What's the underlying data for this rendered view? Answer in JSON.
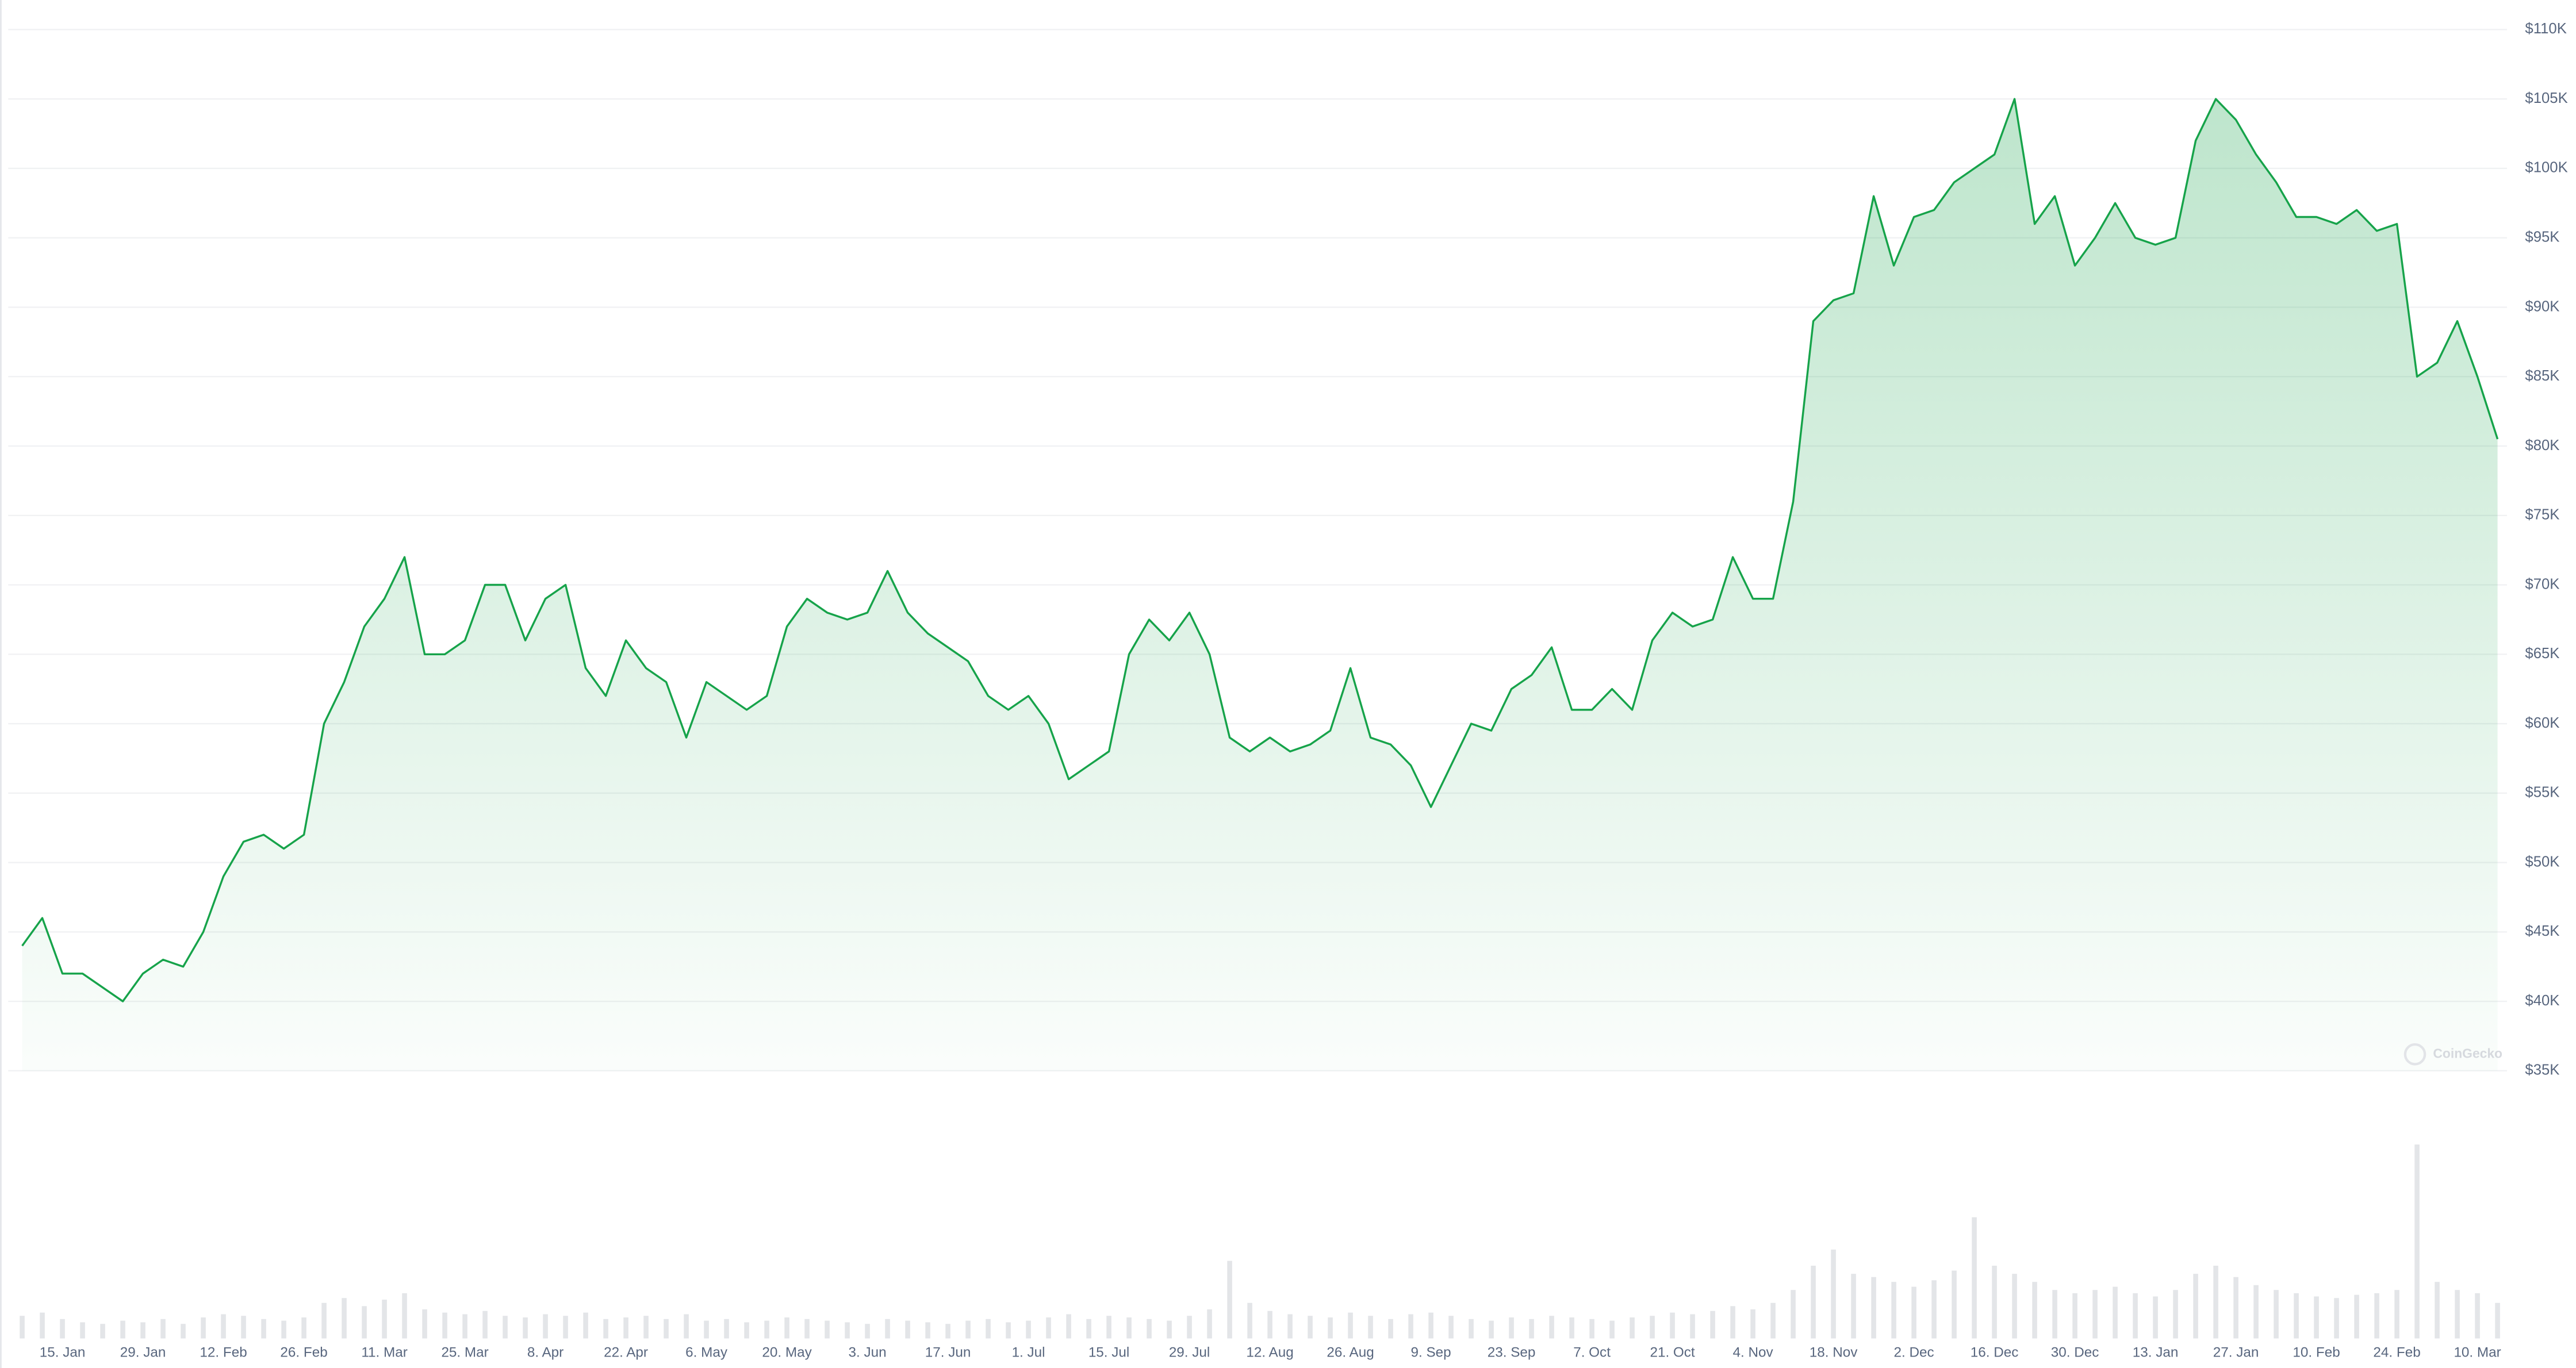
{
  "chart_data": {
    "type": "area",
    "color": "#16a34a",
    "grid": true,
    "annotation": "CoinGecko",
    "categories": [
      null,
      null,
      "15. Jan",
      null,
      null,
      null,
      "29. Jan",
      null,
      null,
      null,
      "12. Feb",
      null,
      null,
      null,
      "26. Feb",
      null,
      null,
      null,
      "11. Mar",
      null,
      null,
      null,
      "25. Mar",
      null,
      null,
      null,
      "8. Apr",
      null,
      null,
      null,
      "22. Apr",
      null,
      null,
      null,
      "6. May",
      null,
      null,
      null,
      "20. May",
      null,
      null,
      null,
      "3. Jun",
      null,
      null,
      null,
      "17. Jun",
      null,
      null,
      null,
      "1. Jul",
      null,
      null,
      null,
      "15. Jul",
      null,
      null,
      null,
      "29. Jul",
      null,
      null,
      null,
      "12. Aug",
      null,
      null,
      null,
      "26. Aug",
      null,
      null,
      null,
      "9. Sep",
      null,
      null,
      null,
      "23. Sep",
      null,
      null,
      null,
      "7. Oct",
      null,
      null,
      null,
      "21. Oct",
      null,
      null,
      null,
      "4. Nov",
      null,
      null,
      null,
      "18. Nov",
      null,
      null,
      null,
      "2. Dec",
      null,
      null,
      null,
      "16. Dec",
      null,
      null,
      null,
      "30. Dec",
      null,
      null,
      null,
      "13. Jan",
      null,
      null,
      null,
      "27. Jan",
      null,
      null,
      null,
      "10. Feb",
      null,
      null,
      null,
      "24. Feb",
      null,
      null,
      null,
      "10. Mar",
      null
    ],
    "series": [
      {
        "values": [
          44000,
          46000,
          42000,
          42000,
          41000,
          40000,
          42000,
          43000,
          42500,
          45000,
          49000,
          51500,
          52000,
          51000,
          52000,
          60000,
          63000,
          67000,
          69000,
          72000,
          65000,
          65000,
          66000,
          70000,
          70000,
          66000,
          69000,
          70000,
          64000,
          62000,
          66000,
          64000,
          63000,
          59000,
          63000,
          62000,
          61000,
          62000,
          67000,
          69000,
          68000,
          67500,
          68000,
          71000,
          68000,
          66500,
          65500,
          64500,
          62000,
          61000,
          62000,
          60000,
          56000,
          57000,
          58000,
          65000,
          67500,
          66000,
          68000,
          65000,
          59000,
          58000,
          59000,
          58000,
          58500,
          59500,
          64000,
          59000,
          58500,
          57000,
          54000,
          57000,
          60000,
          59500,
          62500,
          63500,
          65500,
          61000,
          61000,
          62500,
          61000,
          66000,
          68000,
          67000,
          67500,
          72000,
          69000,
          69000,
          76000,
          89000,
          90500,
          91000,
          98000,
          93000,
          96500,
          97000,
          99000,
          100000,
          101000,
          105000,
          96000,
          98000,
          93000,
          95000,
          97500,
          95000,
          94500,
          95000,
          102000,
          105000,
          103500,
          101000,
          99000,
          96500,
          96500,
          96000,
          97000,
          95500,
          96000,
          85000,
          86000,
          89000,
          85000,
          80500
        ]
      }
    ],
    "volume": [
      14,
      16,
      12,
      10,
      9,
      11,
      10,
      12,
      9,
      13,
      15,
      14,
      12,
      11,
      13,
      22,
      25,
      20,
      24,
      28,
      18,
      16,
      15,
      17,
      14,
      13,
      15,
      14,
      16,
      12,
      13,
      14,
      12,
      15,
      11,
      12,
      10,
      11,
      13,
      12,
      11,
      10,
      9,
      12,
      11,
      10,
      9,
      11,
      12,
      10,
      11,
      13,
      15,
      12,
      14,
      13,
      12,
      11,
      14,
      18,
      48,
      22,
      17,
      15,
      14,
      13,
      16,
      14,
      12,
      15,
      16,
      14,
      12,
      11,
      13,
      12,
      14,
      13,
      12,
      11,
      13,
      14,
      16,
      15,
      17,
      20,
      18,
      22,
      30,
      45,
      55,
      40,
      38,
      35,
      32,
      36,
      42,
      75,
      45,
      40,
      35,
      30,
      28,
      30,
      32,
      28,
      26,
      30,
      40,
      45,
      38,
      33,
      30,
      28,
      26,
      25,
      27,
      28,
      30,
      120,
      35,
      30,
      28,
      22
    ],
    "y2lim": [
      0,
      125
    ],
    "ylim": [
      35000,
      110000
    ],
    "yticks": [
      {
        "value": 35000,
        "label": "$35K"
      },
      {
        "value": 40000,
        "label": "$40K"
      },
      {
        "value": 45000,
        "label": "$45K"
      },
      {
        "value": 50000,
        "label": "$50K"
      },
      {
        "value": 55000,
        "label": "$55K"
      },
      {
        "value": 60000,
        "label": "$60K"
      },
      {
        "value": 65000,
        "label": "$65K"
      },
      {
        "value": 70000,
        "label": "$70K"
      },
      {
        "value": 75000,
        "label": "$75K"
      },
      {
        "value": 80000,
        "label": "$80K"
      },
      {
        "value": 85000,
        "label": "$85K"
      },
      {
        "value": 90000,
        "label": "$90K"
      },
      {
        "value": 95000,
        "label": "$95K"
      },
      {
        "value": 100000,
        "label": "$100K"
      },
      {
        "value": 105000,
        "label": "$105K"
      },
      {
        "value": 110000,
        "label": "$110K"
      }
    ]
  }
}
